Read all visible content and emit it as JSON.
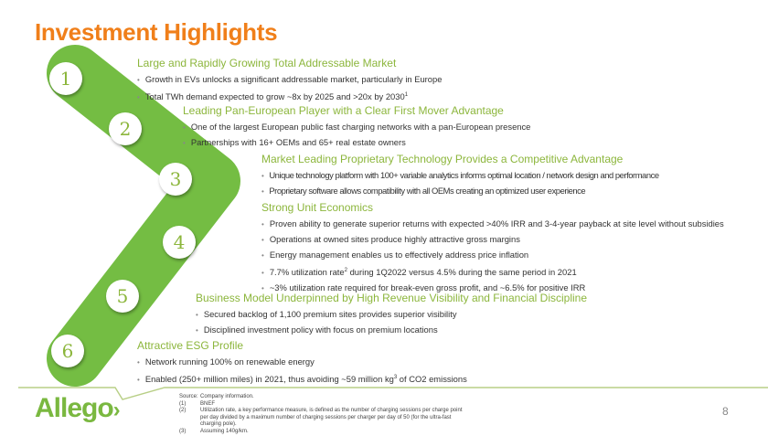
{
  "title": "Investment Highlights",
  "accent_color": "#8cb63c",
  "title_color": "#f07f1a",
  "chevron_color": "#74bd43",
  "sections": [
    {
      "number": "1",
      "heading": "Large and Rapidly Growing Total Addressable Market",
      "bullets": [
        "Growth in EVs  unlocks a significant addressable market, particularly in Europe",
        "Total TWh demand expected to grow ~8x by 2025 and >20x by 2030"
      ],
      "footnote_ref": "1"
    },
    {
      "number": "2",
      "heading": "Leading Pan-European Player with a Clear First Mover Advantage",
      "bullets": [
        "One of the largest European public fast charging networks with a pan-European presence",
        "Partnerships with 16+ OEMs and 65+ real estate owners"
      ]
    },
    {
      "number": "3",
      "heading": "Market Leading Proprietary Technology Provides a Competitive Advantage",
      "bullets": [
        "Unique technology platform with 100+ variable analytics informs optimal location / network design and performance",
        "Proprietary software allows compatibility with all OEMs creating an optimized user experience"
      ]
    },
    {
      "number": "4",
      "heading": "Strong Unit Economics",
      "bullets": [
        "Proven ability to generate superior returns with expected >40% IRR and 3-4-year payback at site level without subsidies",
        "Operations at owned sites produce highly attractive gross margins",
        "Energy management enables us to effectively address price inflation",
        "7.7% utilization rate",
        "~3% utilization rate required for break-even gross profit, and ~6.5% for positive IRR"
      ],
      "bullet4_ref": "2",
      "bullet4_rest": " during 1Q2022 versus 4.5% during the same period in 2021"
    },
    {
      "number": "5",
      "heading": "Business Model Underpinned by High Revenue Visibility and Financial Discipline",
      "bullets": [
        "Secured backlog of 1,100 premium sites provides superior visibility",
        "Disciplined investment policy with focus on premium locations"
      ]
    },
    {
      "number": "6",
      "heading": "Attractive ESG Profile",
      "bullets": [
        "Network running 100% on renewable energy",
        "Enabled (250+ million miles) in 2021, thus avoiding ~59 million kg"
      ],
      "bullet2_ref": "3",
      "bullet2_rest": " of CO2 emissions"
    }
  ],
  "logo_text": "Allego",
  "sources": [
    {
      "key": "Source:",
      "text": "Company information."
    },
    {
      "key": "(1)",
      "text": "BNEF"
    },
    {
      "key": "(2)",
      "text": "Utilization rate, a key performance measure, is defined as the number of charging sessions per charge point per day divided by a maximum number of charging sessions per charger per day of 50 (for the ultra-fast charging pole)."
    },
    {
      "key": "(3)",
      "text": "Assuming 140g/km."
    }
  ],
  "page_number": "8"
}
